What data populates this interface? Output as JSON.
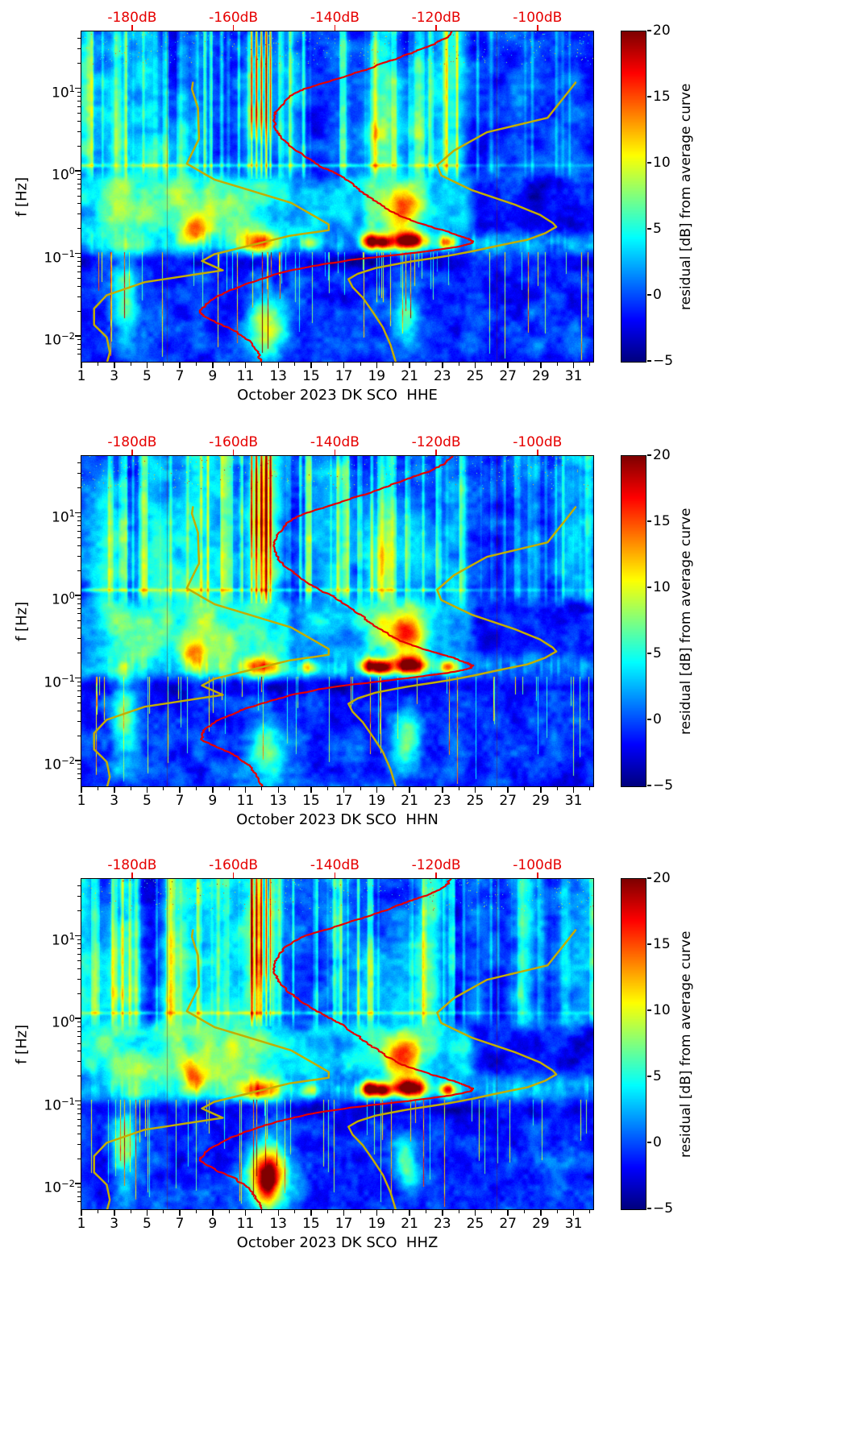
{
  "figure": {
    "ylabel": "f [Hz]",
    "top_axis": {
      "color": "#e60000",
      "labels": [
        "-180dB",
        "-160dB",
        "-140dB",
        "-120dB",
        "-100dB"
      ],
      "values": [
        -180,
        -160,
        -140,
        -120,
        -100
      ],
      "range_dB": [
        -190,
        -89
      ]
    },
    "x_axis": {
      "tick_labels": [
        "1",
        "3",
        "5",
        "7",
        "9",
        "11",
        "13",
        "15",
        "17",
        "19",
        "21",
        "23",
        "25",
        "27",
        "29",
        "31"
      ],
      "tick_values": [
        1,
        3,
        5,
        7,
        9,
        11,
        13,
        15,
        17,
        19,
        21,
        23,
        25,
        27,
        29,
        31
      ],
      "range_days": [
        1,
        32.2
      ]
    },
    "y_axis": {
      "scale": "log",
      "range_hz": [
        0.005,
        50
      ],
      "ticks": [
        {
          "mantissa": "10",
          "exp": "1",
          "value": 10
        },
        {
          "mantissa": "10",
          "exp": "0",
          "value": 1
        },
        {
          "mantissa": "10",
          "exp": "−1",
          "value": 0.1
        },
        {
          "mantissa": "10",
          "exp": "−2",
          "value": 0.01
        }
      ]
    },
    "colorbar": {
      "label": "residual [dB] from average curve",
      "ticks": [
        "20",
        "15",
        "10",
        "5",
        "0",
        "−5"
      ],
      "tick_values": [
        20,
        15,
        10,
        5,
        0,
        -5
      ],
      "vmin": -5,
      "vmax": 20
    },
    "panels": [
      {
        "channel": "HHE",
        "xlabel": "October 2023 DK SCO  HHE"
      },
      {
        "channel": "HHN",
        "xlabel": "October 2023 DK SCO  HHN"
      },
      {
        "channel": "HHZ",
        "xlabel": "October 2023 DK SCO  HHZ"
      }
    ]
  },
  "chart_data": {
    "type": "heatmap",
    "subplots": [
      "HHE",
      "HHN",
      "HHZ"
    ],
    "x": {
      "label": "day of October 2023",
      "range": [
        1,
        32.2
      ],
      "ticks": [
        1,
        3,
        5,
        7,
        9,
        11,
        13,
        15,
        17,
        19,
        21,
        23,
        25,
        27,
        29,
        31
      ]
    },
    "y": {
      "label": "f [Hz]",
      "scale": "log",
      "range": [
        0.005,
        50
      ],
      "ticks": [
        10,
        1,
        0.1,
        0.01
      ]
    },
    "color": {
      "label": "residual [dB] from average curve",
      "colormap": "jet",
      "range": [
        -5,
        20
      ],
      "ticks": [
        20,
        15,
        10,
        5,
        0,
        -5
      ]
    },
    "top_axis_dB": {
      "range": [
        -190,
        -89
      ],
      "ticks": [
        -180,
        -160,
        -140,
        -120,
        -100
      ]
    },
    "overlay_curves": [
      {
        "name": "yellow-left-curve",
        "color": "#c3ad00",
        "points_f_hz_dB": [
          [
            12,
            -168
          ],
          [
            10,
            -168.2
          ],
          [
            5.9,
            -167
          ],
          [
            2.5,
            -166.8
          ],
          [
            1.25,
            -169.2
          ],
          [
            0.8,
            -163.7
          ],
          [
            0.42,
            -148.6
          ],
          [
            0.23,
            -141.2
          ],
          [
            0.196,
            -141.2
          ],
          [
            0.167,
            -149
          ],
          [
            0.1,
            -163.8
          ],
          [
            0.083,
            -166.2
          ],
          [
            0.064,
            -162.1
          ],
          [
            0.046,
            -177.5
          ],
          [
            0.032,
            -185
          ],
          [
            0.022,
            -187.5
          ],
          [
            0.014,
            -187.5
          ],
          [
            0.0099,
            -185
          ],
          [
            0.0065,
            -184.4
          ],
          [
            0.005,
            -184.9
          ]
        ]
      },
      {
        "name": "yellow-right-curve",
        "color": "#c3ad00",
        "points_f_hz_dB": [
          [
            12,
            -92.5
          ],
          [
            10,
            -93.5
          ],
          [
            4.5,
            -98
          ],
          [
            3.0,
            -110
          ],
          [
            1.8,
            -116.5
          ],
          [
            1.2,
            -119.8
          ],
          [
            0.9,
            -119
          ],
          [
            0.6,
            -113
          ],
          [
            0.4,
            -104.5
          ],
          [
            0.3,
            -99.5
          ],
          [
            0.24,
            -97
          ],
          [
            0.215,
            -96.3
          ],
          [
            0.18,
            -98.5
          ],
          [
            0.15,
            -102
          ],
          [
            0.13,
            -107
          ],
          [
            0.11,
            -112.5
          ],
          [
            0.095,
            -118
          ],
          [
            0.08,
            -126
          ],
          [
            0.068,
            -132
          ],
          [
            0.058,
            -135.5
          ],
          [
            0.05,
            -137.3
          ],
          [
            0.04,
            -136.5
          ],
          [
            0.03,
            -134.5
          ],
          [
            0.02,
            -132.5
          ],
          [
            0.013,
            -130.5
          ],
          [
            0.008,
            -129
          ],
          [
            0.005,
            -128
          ]
        ]
      },
      {
        "name": "red-average-curve",
        "color": "#e60000",
        "points_f_hz_dB": [
          [
            50,
            -117
          ],
          [
            42,
            -118
          ],
          [
            36,
            -120
          ],
          [
            30,
            -123
          ],
          [
            26,
            -126
          ],
          [
            22,
            -129
          ],
          [
            18,
            -133
          ],
          [
            15,
            -137
          ],
          [
            12,
            -142
          ],
          [
            10,
            -146
          ],
          [
            8.5,
            -148.5
          ],
          [
            7,
            -150
          ],
          [
            5.5,
            -151.5
          ],
          [
            4.5,
            -152
          ],
          [
            3.5,
            -152
          ],
          [
            2.8,
            -151
          ],
          [
            2.2,
            -149.5
          ],
          [
            1.8,
            -147.5
          ],
          [
            1.4,
            -145
          ],
          [
            1.15,
            -142.5
          ],
          [
            1.0,
            -140.5
          ],
          [
            0.85,
            -138.5
          ],
          [
            0.7,
            -136.5
          ],
          [
            0.6,
            -135
          ],
          [
            0.5,
            -133.5
          ],
          [
            0.42,
            -131.5
          ],
          [
            0.35,
            -129.5
          ],
          [
            0.3,
            -127.5
          ],
          [
            0.26,
            -125
          ],
          [
            0.22,
            -121.5
          ],
          [
            0.19,
            -118
          ],
          [
            0.17,
            -115.5
          ],
          [
            0.155,
            -113.8
          ],
          [
            0.145,
            -112.8
          ],
          [
            0.135,
            -113.2
          ],
          [
            0.125,
            -115.5
          ],
          [
            0.115,
            -119
          ],
          [
            0.105,
            -124
          ],
          [
            0.095,
            -130
          ],
          [
            0.085,
            -137
          ],
          [
            0.075,
            -143
          ],
          [
            0.065,
            -148
          ],
          [
            0.055,
            -152.5
          ],
          [
            0.045,
            -157
          ],
          [
            0.037,
            -160.5
          ],
          [
            0.03,
            -163.5
          ],
          [
            0.025,
            -165.5
          ],
          [
            0.021,
            -166.5
          ],
          [
            0.018,
            -166
          ],
          [
            0.015,
            -163.5
          ],
          [
            0.0125,
            -160.5
          ],
          [
            0.0105,
            -158.5
          ],
          [
            0.009,
            -157
          ],
          [
            0.0075,
            -156
          ],
          [
            0.006,
            -155
          ],
          [
            0.005,
            -154.5
          ]
        ]
      }
    ],
    "high_residual_regions": [
      {
        "day": 11.9,
        "f_hz": 0.141,
        "day_sigma": 0.95,
        "logf_sigma": 0.095,
        "amp_db": 12
      },
      {
        "day": 18.55,
        "f_hz": 0.145,
        "day_sigma": 0.4,
        "logf_sigma": 0.07,
        "amp_db": 19
      },
      {
        "day": 19.35,
        "f_hz": 0.138,
        "day_sigma": 0.32,
        "logf_sigma": 0.06,
        "amp_db": 15
      },
      {
        "day": 20.9,
        "f_hz": 0.148,
        "day_sigma": 0.8,
        "logf_sigma": 0.08,
        "amp_db": 21
      },
      {
        "day": 23.3,
        "f_hz": 0.141,
        "day_sigma": 0.38,
        "logf_sigma": 0.06,
        "amp_db": 13
      },
      {
        "day": 14.9,
        "f_hz": 0.138,
        "day_sigma": 0.4,
        "logf_sigma": 0.06,
        "amp_db": 8
      },
      {
        "day": 7.8,
        "f_hz": 0.19,
        "day_sigma": 0.55,
        "logf_sigma": 0.13,
        "amp_db": 9
      },
      {
        "day": 20.6,
        "f_hz": 0.36,
        "day_sigma": 0.9,
        "logf_sigma": 0.17,
        "amp_db": 12
      },
      {
        "day": 9.2,
        "f_hz": 0.32,
        "day_sigma": 1.7,
        "logf_sigma": 0.3,
        "amp_db": 6
      },
      {
        "day": 2.9,
        "f_hz": 3.5,
        "day_sigma": 0.95,
        "logf_sigma": 0.55,
        "amp_db": 5
      },
      {
        "day": 11.8,
        "f_hz": 6.3,
        "day_sigma": 0.8,
        "logf_sigma": 0.65,
        "amp_db": 7
      },
      {
        "day": 18.8,
        "f_hz": 2.2,
        "day_sigma": 0.75,
        "logf_sigma": 0.5,
        "amp_db": 4.5
      },
      {
        "day": 21.2,
        "f_hz": 3.5,
        "day_sigma": 1.15,
        "logf_sigma": 0.6,
        "amp_db": 4.5
      },
      {
        "day": 3.6,
        "f_hz": 0.028,
        "day_sigma": 0.5,
        "logf_sigma": 0.35,
        "amp_db": 8
      },
      {
        "day": 12.3,
        "f_hz": 0.013,
        "day_sigma": 0.85,
        "logf_sigma": 0.3,
        "amp_db": [
          10,
          8,
          17
        ]
      },
      {
        "day": 12.3,
        "f_hz": 0.011,
        "day_sigma": 0.45,
        "logf_sigma": 0.17,
        "amp_db": [
          0,
          0,
          8
        ]
      },
      {
        "day": 20.8,
        "f_hz": 0.018,
        "day_sigma": 0.55,
        "logf_sigma": 0.25,
        "amp_db": 8
      },
      {
        "day": 6.5,
        "f_hz": 1.6,
        "day_sigma": 0.85,
        "logf_sigma": 0.5,
        "amp_db": 3.5
      },
      {
        "day": 4.0,
        "f_hz": 0.25,
        "day_sigma": 1.2,
        "logf_sigma": 0.35,
        "amp_db": 5
      }
    ],
    "notable_features": {
      "microseism_band_hz": [
        0.1,
        0.2
      ],
      "high_residual_days": [
        11,
        12,
        13,
        18,
        19,
        20,
        21,
        22,
        23
      ],
      "quiet_days_0p2_to_2hz": [
        25,
        26,
        27,
        28,
        29,
        30,
        31
      ],
      "strong_low_frequency_packet_days": [
        11,
        12,
        13
      ]
    }
  }
}
